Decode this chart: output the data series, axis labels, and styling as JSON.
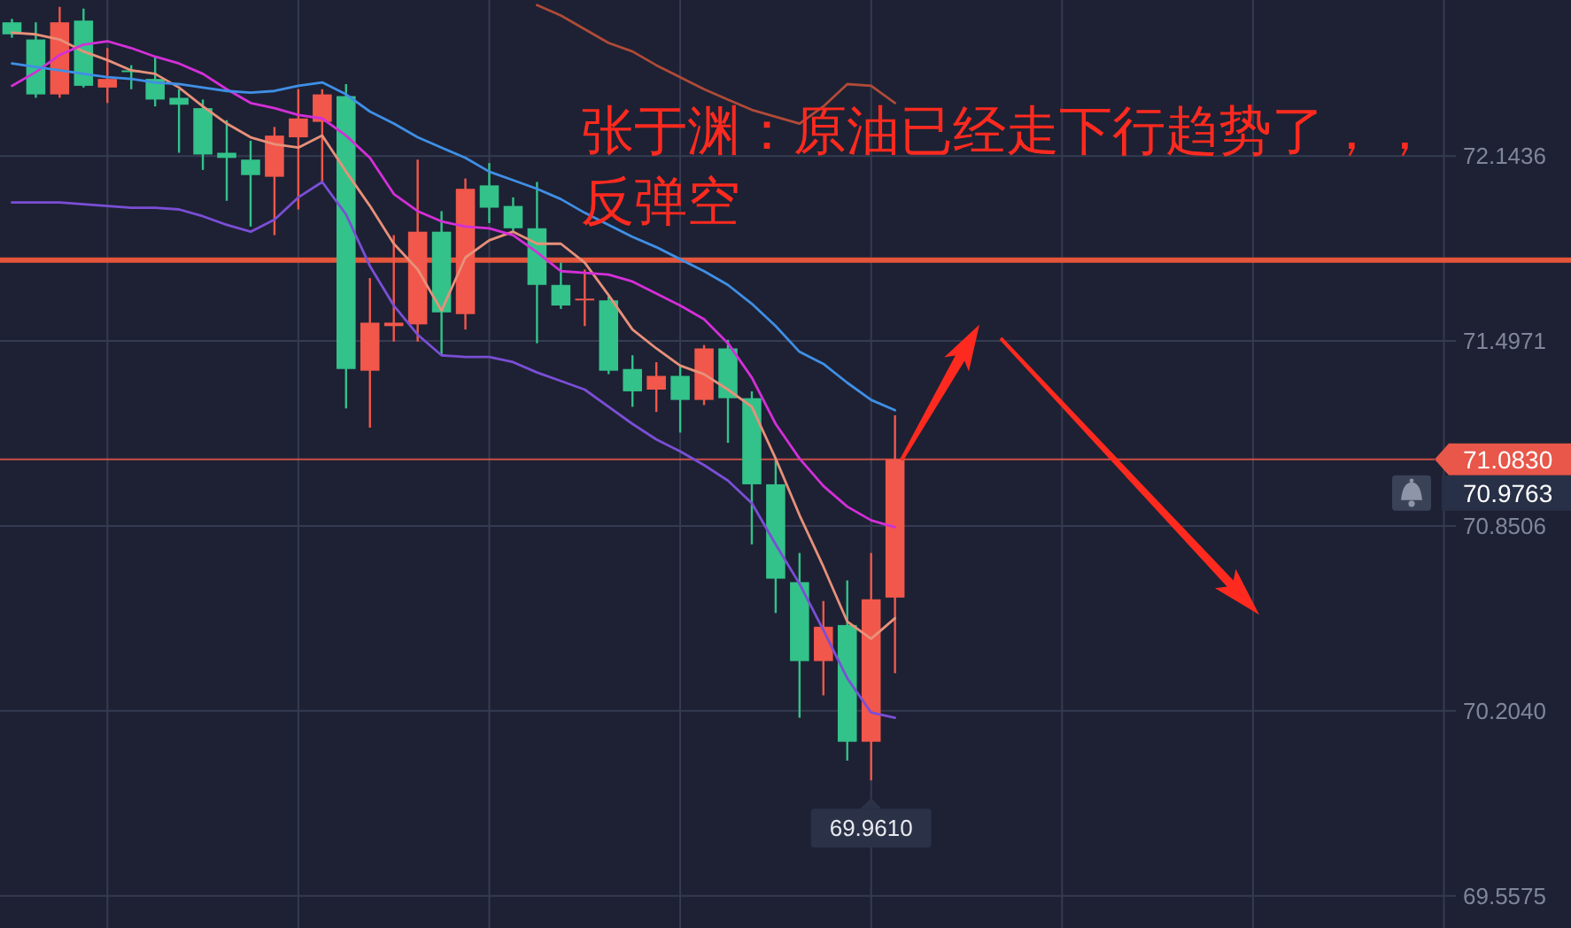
{
  "chart_data": {
    "type": "candlestick",
    "categories": [
      null,
      null,
      null,
      null,
      null,
      null,
      null,
      null,
      null,
      null,
      null,
      null,
      null,
      null,
      null,
      null,
      null,
      null,
      null,
      null,
      null,
      null,
      null,
      null,
      null,
      null,
      null,
      null,
      null,
      null,
      null,
      null,
      null,
      null,
      null,
      null,
      null,
      null,
      null,
      null,
      null,
      null,
      null,
      null,
      null,
      null,
      null,
      null,
      null,
      null,
      null,
      null,
      null,
      null,
      null,
      null,
      null,
      null,
      null,
      null,
      null
    ],
    "ohlc": [
      [
        72.611,
        72.623,
        72.557,
        72.569
      ],
      [
        72.551,
        72.611,
        72.347,
        72.359
      ],
      [
        72.359,
        72.665,
        72.347,
        72.611
      ],
      [
        72.617,
        72.659,
        72.383,
        72.389
      ],
      [
        72.383,
        72.521,
        72.329,
        72.413
      ],
      [
        72.443,
        72.461,
        72.377,
        72.437
      ],
      [
        72.413,
        72.491,
        72.317,
        72.341
      ],
      [
        72.347,
        72.377,
        72.155,
        72.323
      ],
      [
        72.311,
        72.341,
        72.095,
        72.149
      ],
      [
        72.155,
        72.269,
        71.987,
        72.137
      ],
      [
        72.131,
        72.197,
        71.897,
        72.077
      ],
      [
        72.071,
        72.245,
        71.867,
        72.215
      ],
      [
        72.209,
        72.377,
        71.957,
        72.275
      ],
      [
        72.263,
        72.377,
        72.053,
        72.359
      ],
      [
        72.353,
        72.395,
        71.261,
        71.399
      ],
      [
        71.393,
        71.717,
        71.194,
        71.561
      ],
      [
        71.549,
        71.867,
        71.495,
        71.561
      ],
      [
        71.555,
        72.131,
        71.495,
        71.879
      ],
      [
        71.879,
        71.951,
        71.447,
        71.597
      ],
      [
        71.591,
        72.065,
        71.537,
        72.029
      ],
      [
        72.041,
        72.119,
        71.909,
        71.963
      ],
      [
        71.969,
        71.999,
        71.879,
        71.891
      ],
      [
        71.891,
        72.053,
        71.489,
        71.693
      ],
      [
        71.693,
        71.771,
        71.609,
        71.621
      ],
      [
        71.639,
        71.747,
        71.549,
        71.645
      ],
      [
        71.639,
        71.657,
        71.381,
        71.393
      ],
      [
        71.399,
        71.447,
        71.267,
        71.321
      ],
      [
        71.327,
        71.423,
        71.249,
        71.375
      ],
      [
        71.375,
        71.411,
        71.177,
        71.291
      ],
      [
        71.291,
        71.483,
        71.273,
        71.471
      ],
      [
        71.471,
        71.501,
        71.141,
        71.297
      ],
      [
        71.297,
        71.321,
        70.786,
        70.996
      ],
      [
        70.996,
        71.086,
        70.546,
        70.666
      ],
      [
        70.654,
        70.756,
        70.18,
        70.378
      ],
      [
        70.378,
        70.588,
        70.258,
        70.498
      ],
      [
        70.504,
        70.66,
        70.03,
        70.096
      ],
      [
        70.096,
        70.756,
        69.961,
        70.594
      ],
      [
        70.6,
        71.237,
        70.336,
        71.083
      ],
      null,
      null,
      null,
      null,
      null,
      null,
      null,
      null,
      null,
      null,
      null,
      null,
      null,
      null,
      null,
      null,
      null,
      null,
      null,
      null,
      null,
      null,
      null
    ],
    "colors": [
      "#33c28a",
      "#33c28a",
      "#f2574b",
      "#33c28a",
      "#f2574b",
      "#33c28a",
      "#33c28a",
      "#33c28a",
      "#33c28a",
      "#33c28a",
      "#33c28a",
      "#f2574b",
      "#f2574b",
      "#f2574b",
      "#33c28a",
      "#f2574b",
      "#f2574b",
      "#f2574b",
      "#33c28a",
      "#f2574b",
      "#33c28a",
      "#33c28a",
      "#33c28a",
      "#33c28a",
      "#f2574b",
      "#33c28a",
      "#33c28a",
      "#f2574b",
      "#33c28a",
      "#f2574b",
      "#33c28a",
      "#33c28a",
      "#33c28a",
      "#33c28a",
      "#f2574b",
      "#33c28a",
      "#f2574b",
      "#f2574b",
      null,
      null,
      null,
      null,
      null,
      null,
      null,
      null,
      null,
      null,
      null,
      null,
      null,
      null,
      null,
      null,
      null,
      null,
      null,
      null,
      null,
      null,
      null
    ],
    "series": [
      {
        "type": "line",
        "color": "#e8907a",
        "values": [
          72.575,
          72.569,
          72.551,
          72.509,
          72.479,
          72.443,
          72.431,
          72.383,
          72.317,
          72.257,
          72.209,
          72.185,
          72.173,
          72.215,
          72.089,
          71.969,
          71.837,
          71.747,
          71.603,
          71.789,
          71.849,
          71.879,
          71.837,
          71.837,
          71.771,
          71.657,
          71.537,
          71.471,
          71.411,
          71.381,
          71.327,
          71.267,
          71.086,
          70.888,
          70.708,
          70.516,
          70.456,
          70.528,
          null,
          null,
          null,
          null,
          null,
          null,
          null,
          null,
          null,
          null,
          null,
          null,
          null,
          null,
          null,
          null,
          null,
          null,
          null,
          null,
          null,
          null,
          null
        ]
      },
      {
        "type": "line",
        "color": "#d42fd8",
        "values": [
          72.389,
          72.437,
          72.497,
          72.533,
          72.545,
          72.521,
          72.491,
          72.467,
          72.431,
          72.377,
          72.329,
          72.311,
          72.287,
          72.275,
          72.215,
          72.137,
          72.011,
          71.951,
          71.915,
          71.897,
          71.891,
          71.867,
          71.807,
          71.741,
          71.735,
          71.729,
          71.705,
          71.663,
          71.621,
          71.573,
          71.489,
          71.369,
          71.207,
          71.086,
          70.99,
          70.918,
          70.87,
          70.846,
          null,
          null,
          null,
          null,
          null,
          null,
          null,
          null,
          null,
          null,
          null,
          null,
          null,
          null,
          null,
          null,
          null,
          null,
          null,
          null,
          null,
          null,
          null
        ]
      },
      {
        "type": "line",
        "color": "#7b4ed6",
        "values": [
          71.981,
          71.981,
          71.981,
          71.975,
          71.969,
          71.963,
          71.963,
          71.957,
          71.933,
          71.903,
          71.879,
          71.921,
          71.999,
          72.053,
          71.939,
          71.759,
          71.621,
          71.519,
          71.447,
          71.441,
          71.441,
          71.423,
          71.387,
          71.357,
          71.327,
          71.267,
          71.207,
          71.153,
          71.111,
          71.063,
          71.009,
          70.93,
          70.786,
          70.648,
          70.486,
          70.318,
          70.198,
          70.18,
          null,
          null,
          null,
          null,
          null,
          null,
          null,
          null,
          null,
          null,
          null,
          null,
          null,
          null,
          null,
          null,
          null,
          null,
          null,
          null,
          null,
          null,
          null
        ]
      },
      {
        "type": "line",
        "color": "#3f8fe6",
        "values": [
          72.467,
          72.455,
          72.443,
          72.431,
          72.419,
          72.413,
          72.401,
          72.395,
          72.383,
          72.371,
          72.365,
          72.371,
          72.389,
          72.401,
          72.359,
          72.299,
          72.257,
          72.209,
          72.173,
          72.137,
          72.089,
          72.059,
          72.029,
          71.993,
          71.945,
          71.903,
          71.861,
          71.825,
          71.783,
          71.741,
          71.693,
          71.627,
          71.549,
          71.459,
          71.417,
          71.351,
          71.291,
          71.255,
          null,
          null,
          null,
          null,
          null,
          null,
          null,
          null,
          null,
          null,
          null,
          null,
          null,
          null,
          null,
          null,
          null,
          null,
          null,
          null,
          null,
          null,
          null
        ]
      },
      {
        "type": "line",
        "color": "#b04a38",
        "values": [
          null,
          null,
          null,
          null,
          null,
          null,
          null,
          null,
          null,
          null,
          null,
          null,
          null,
          null,
          null,
          null,
          null,
          null,
          null,
          null,
          null,
          null,
          72.671,
          72.635,
          72.587,
          72.539,
          72.509,
          72.461,
          72.419,
          72.377,
          72.341,
          72.305,
          72.281,
          72.257,
          72.317,
          72.395,
          72.389,
          72.329,
          null,
          null,
          null,
          null,
          null,
          null,
          null,
          null,
          null,
          null,
          null,
          null,
          null,
          null,
          null,
          null,
          null,
          null,
          null,
          null,
          null,
          null,
          null
        ]
      }
    ],
    "ylim": [
      69.544,
      72.689
    ],
    "yticks": [
      72.1436,
      71.4971,
      70.8506,
      {
        "value": 70.204,
        "label": "70.2040"
      },
      69.5575
    ],
    "tick_labels": "y",
    "grid": true,
    "ref_lines": [
      {
        "axis": "y",
        "value": 71.78,
        "color": "#e4553b"
      },
      {
        "axis": "y",
        "value": 71.083,
        "label": "71.0830",
        "color": "#e8574a"
      }
    ],
    "annotations": [
      "张于渊：原油已经走下行趋势了，，反弹空",
      "70.9763",
      {
        "text": "69.9610",
        "y": 69.961
      }
    ]
  }
}
